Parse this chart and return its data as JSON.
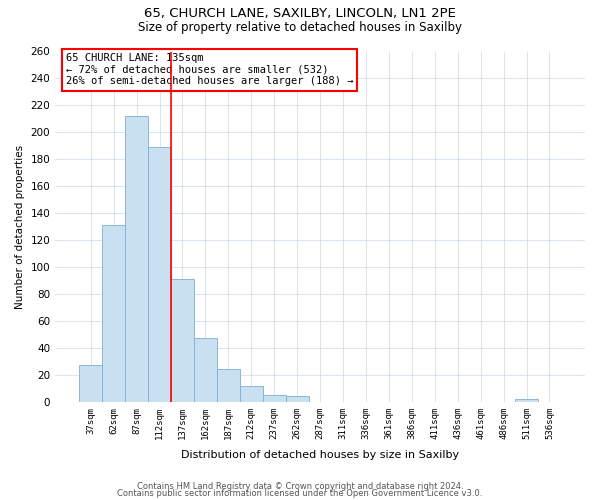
{
  "title1": "65, CHURCH LANE, SAXILBY, LINCOLN, LN1 2PE",
  "title2": "Size of property relative to detached houses in Saxilby",
  "xlabel": "Distribution of detached houses by size in Saxilby",
  "ylabel": "Number of detached properties",
  "bar_labels": [
    "37sqm",
    "62sqm",
    "87sqm",
    "112sqm",
    "137sqm",
    "162sqm",
    "187sqm",
    "212sqm",
    "237sqm",
    "262sqm",
    "287sqm",
    "311sqm",
    "336sqm",
    "361sqm",
    "386sqm",
    "411sqm",
    "436sqm",
    "461sqm",
    "486sqm",
    "511sqm",
    "536sqm"
  ],
  "bar_values": [
    27,
    131,
    212,
    189,
    91,
    47,
    24,
    12,
    5,
    4,
    0,
    0,
    0,
    0,
    0,
    0,
    0,
    0,
    0,
    2,
    0
  ],
  "bar_color": "#c8e0f0",
  "bar_edgecolor": "#7ab0d4",
  "bar_width": 1.0,
  "vline_x": 3.5,
  "vline_color": "red",
  "annotation_line1": "65 CHURCH LANE: 135sqm",
  "annotation_line2": "← 72% of detached houses are smaller (532)",
  "annotation_line3": "26% of semi-detached houses are larger (188) →",
  "annotation_box_color": "white",
  "annotation_box_edgecolor": "red",
  "ylim": [
    0,
    260
  ],
  "yticks": [
    0,
    20,
    40,
    60,
    80,
    100,
    120,
    140,
    160,
    180,
    200,
    220,
    240,
    260
  ],
  "footer1": "Contains HM Land Registry data © Crown copyright and database right 2024.",
  "footer2": "Contains public sector information licensed under the Open Government Licence v3.0.",
  "bg_color": "#ffffff",
  "grid_color": "#ccd8ec"
}
